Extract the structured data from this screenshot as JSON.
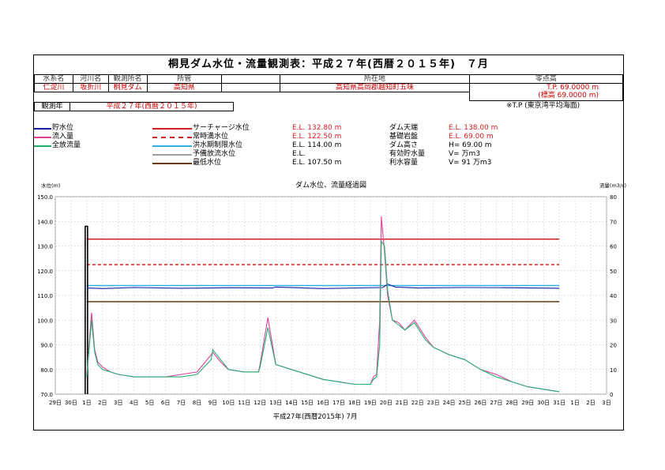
{
  "header": {
    "title": "桐見ダム水位・流量観測表：平成２７年(西暦２０１５年)　７月"
  },
  "info": {
    "labels": [
      "水系名",
      "河川名",
      "観測所名",
      "所管",
      "",
      "所在地",
      "零点高"
    ],
    "values": [
      "仁淀川",
      "坂折川",
      "桐見ダム",
      "高知県",
      "",
      "高知県高岡郡越知町五味",
      ""
    ],
    "tp": "T.P. 69.0000 m",
    "hyo": "(標高 69.0000 m)",
    "year_label": "観測年",
    "year_value": "平成２７年(西暦２０１５年)",
    "tp_note": "※T.P (東京湾平均海面)"
  },
  "legend_left": [
    {
      "label": "貯水位",
      "color": "#1a1aa8"
    },
    {
      "label": "流入量",
      "color": "#e0409a"
    },
    {
      "label": "全放流量",
      "color": "#20b070"
    }
  ],
  "legend_mid": [
    {
      "label": "サーチャージ水位",
      "color": "#d42020",
      "dash": false,
      "value": "E.L.  132.80  m",
      "value_color": "#d42020"
    },
    {
      "label": "常時満水位",
      "color": "#d42020",
      "dash": true,
      "value": "E.L.  122.50  m",
      "value_color": "#d42020"
    },
    {
      "label": "洪水期制限水位",
      "color": "#30b0e0",
      "dash": false,
      "value": "E.L.  114.00  m",
      "value_color": "#000"
    },
    {
      "label": "予備放流水位",
      "color": "#a0a0a0",
      "dash": false,
      "value": "E.L.",
      "value_color": "#000"
    },
    {
      "label": "最低水位",
      "color": "#6b3a10",
      "dash": false,
      "value": "E.L.  107.50  m",
      "value_color": "#000"
    }
  ],
  "legend_right": [
    {
      "label": "ダム天端",
      "value": "E.L.  138.00  m",
      "red": true
    },
    {
      "label": "基礎岩盤",
      "value": "E.L.   69.00  m",
      "red": true
    },
    {
      "label": "ダム高さ",
      "value": "H=   69.00  m",
      "red": false
    },
    {
      "label": "有効貯水量",
      "value": "V=          万m3",
      "red": false
    },
    {
      "label": "利水容量",
      "value": "V=       91  万m3",
      "red": false
    }
  ],
  "chart_data": {
    "type": "line",
    "title": "ダム水位、流量経過図",
    "xlabel": "平成27年(西暦2015年) 7月",
    "ylabel_left": "水位(m)",
    "ylabel_right": "流量(m3/s)",
    "ylim_left": [
      70,
      150
    ],
    "ylim_right": [
      0,
      80
    ],
    "x_tick_labels": [
      "29日",
      "30日",
      "1日",
      "2日",
      "3日",
      "4日",
      "5日",
      "6日",
      "7日",
      "8日",
      "9日",
      "10日",
      "11日",
      "12日",
      "13日",
      "14日",
      "15日",
      "16日",
      "17日",
      "18日",
      "19日",
      "20日",
      "21日",
      "22日",
      "23日",
      "24日",
      "25日",
      "26日",
      "27日",
      "28日",
      "29日",
      "30日",
      "31日",
      "1日",
      "2日",
      "3日"
    ],
    "left_ticks": [
      "150.0",
      "140.0",
      "130.0",
      "120.0",
      "110.0",
      "100.0",
      "90.0",
      "80.0",
      "70.0"
    ],
    "right_ticks": [
      "80",
      "70",
      "60",
      "50",
      "40",
      "30",
      "20",
      "10",
      "0"
    ],
    "reference_lines": [
      {
        "name": "サーチャージ水位",
        "value": 132.8,
        "color": "#d42020",
        "dash": false
      },
      {
        "name": "常時満水位",
        "value": 122.5,
        "color": "#d42020",
        "dash": true
      },
      {
        "name": "洪水期制限水位",
        "value": 114.0,
        "color": "#30b0e0",
        "dash": false
      },
      {
        "name": "最低水位",
        "value": 107.5,
        "color": "#6b3a10",
        "dash": false
      }
    ],
    "x_start_day": 1.0,
    "x_end_day": 31.0,
    "series": [
      {
        "name": "貯水位",
        "axis": "left",
        "color": "#1a1aa8",
        "x": [
          1.0,
          2.0,
          4.0,
          7.0,
          10.0,
          12.8,
          13.0,
          16.0,
          19.8,
          20.1,
          20.6,
          22.0,
          25.0,
          28.0,
          31.0
        ],
        "values": [
          113.0,
          112.8,
          113.2,
          112.9,
          113.1,
          113.0,
          113.4,
          112.8,
          113.2,
          114.6,
          113.4,
          113.0,
          113.2,
          113.1,
          112.9
        ]
      },
      {
        "name": "流入量",
        "axis": "right",
        "color": "#e0409a",
        "x": [
          1.0,
          1.3,
          1.5,
          1.7,
          2.0,
          2.5,
          3.0,
          4.0,
          5.0,
          6.0,
          7.0,
          8.0,
          8.9,
          9.0,
          9.5,
          10.0,
          11.0,
          11.9,
          12.0,
          12.5,
          13.0,
          14.0,
          15.0,
          16.0,
          17.0,
          18.0,
          19.0,
          19.2,
          19.4,
          19.6,
          19.7,
          19.9,
          20.1,
          20.4,
          20.8,
          21.2,
          21.8,
          22.5,
          23.0,
          24.0,
          25.0,
          26.0,
          27.0,
          28.0,
          29.0,
          30.0,
          31.0
        ],
        "values": [
          8,
          33,
          18,
          13,
          11,
          9,
          8,
          7,
          7,
          7,
          8,
          9,
          16,
          17,
          13,
          10,
          9,
          9,
          12,
          31,
          12,
          10,
          8,
          6,
          5,
          4,
          4,
          7,
          8,
          30,
          72,
          58,
          40,
          30,
          29,
          26,
          30,
          23,
          19,
          16,
          14,
          10,
          8,
          5,
          3,
          2,
          1
        ]
      },
      {
        "name": "全放流量",
        "axis": "right",
        "color": "#20b070",
        "x": [
          1.0,
          1.3,
          1.5,
          1.7,
          2.0,
          2.5,
          3.0,
          4.0,
          5.0,
          6.0,
          7.0,
          8.0,
          8.9,
          9.0,
          9.5,
          10.0,
          11.0,
          11.9,
          12.0,
          12.5,
          13.0,
          14.0,
          15.0,
          16.0,
          17.0,
          18.0,
          19.0,
          19.2,
          19.4,
          19.6,
          19.7,
          19.9,
          20.1,
          20.4,
          20.8,
          21.2,
          21.8,
          22.5,
          23.0,
          24.0,
          25.0,
          26.0,
          27.0,
          28.0,
          29.0,
          30.0,
          31.0
        ],
        "values": [
          7,
          30,
          17,
          12,
          10,
          9,
          8,
          7,
          7,
          7,
          7,
          8,
          14,
          18,
          14,
          10,
          9,
          9,
          11,
          27,
          12,
          10,
          8,
          6,
          5,
          4,
          4,
          6,
          7,
          20,
          62,
          60,
          42,
          30,
          28,
          26,
          29,
          22,
          19,
          16,
          14,
          10,
          7,
          5,
          3,
          2,
          1
        ]
      }
    ]
  }
}
